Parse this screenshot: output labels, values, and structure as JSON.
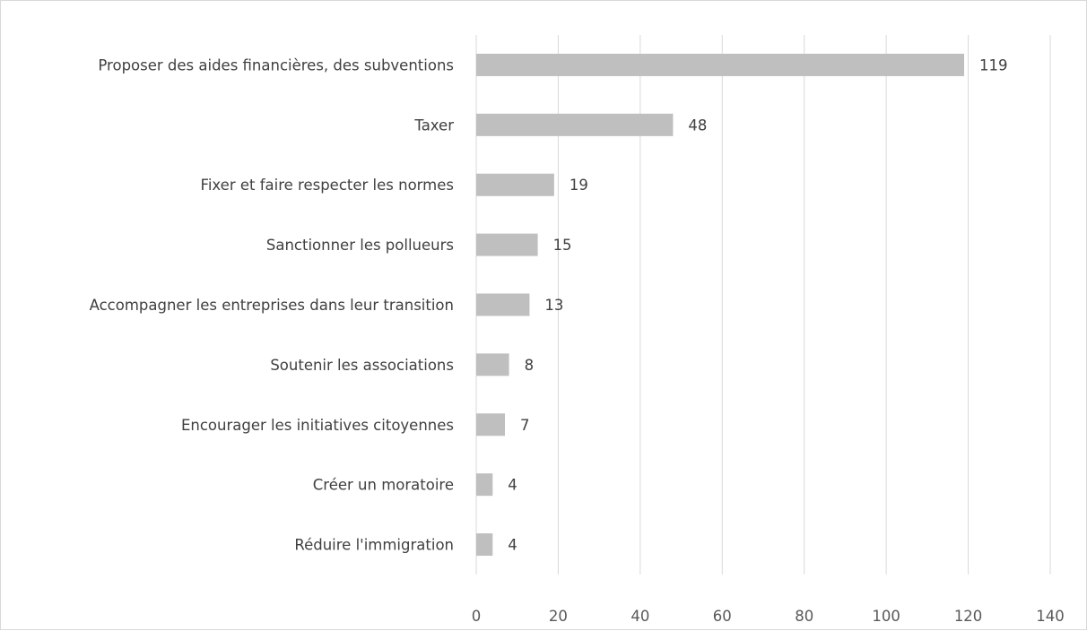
{
  "chart_data": {
    "type": "bar",
    "orientation": "horizontal",
    "categories": [
      "Proposer des aides financières, des subventions",
      "Taxer",
      "Fixer et faire respecter les normes",
      "Sanctionner les pollueurs",
      "Accompagner les entreprises dans leur transition",
      "Soutenir les associations",
      "Encourager les initiatives citoyennes",
      "Créer un moratoire",
      "Réduire l'immigration"
    ],
    "values": [
      119,
      48,
      19,
      15,
      13,
      8,
      7,
      4,
      4
    ],
    "xlim": [
      0,
      140
    ],
    "xticks": [
      "0",
      "20",
      "40",
      "60",
      "80",
      "100",
      "120",
      "140"
    ],
    "grid": "vertical",
    "data_labels": true,
    "colors": {
      "bar": "#bfbfbf",
      "grid": "#d9d9d9",
      "text": "#404040",
      "ticks": "#595959"
    }
  }
}
